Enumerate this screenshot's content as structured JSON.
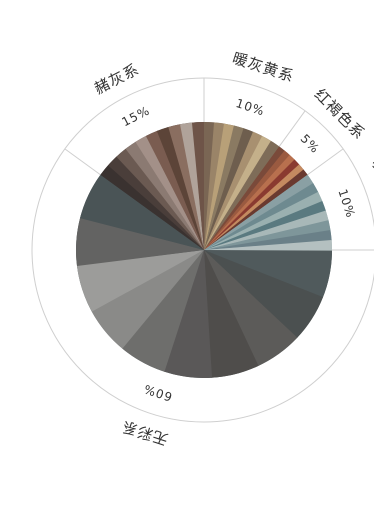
{
  "chart_data": {
    "type": "pie",
    "categories": [
      {
        "name": "无彩系",
        "percent_label": "60%",
        "value": 60
      },
      {
        "name": "赭灰系",
        "percent_label": "15%",
        "value": 15
      },
      {
        "name": "暖灰黄系",
        "percent_label": "10%",
        "value": 10
      },
      {
        "name": "红褐色系",
        "percent_label": "5%",
        "value": 5
      },
      {
        "name": "灰蓝绿系",
        "percent_label": "10%",
        "value": 10
      }
    ],
    "legend": "none",
    "grid": false
  }
}
